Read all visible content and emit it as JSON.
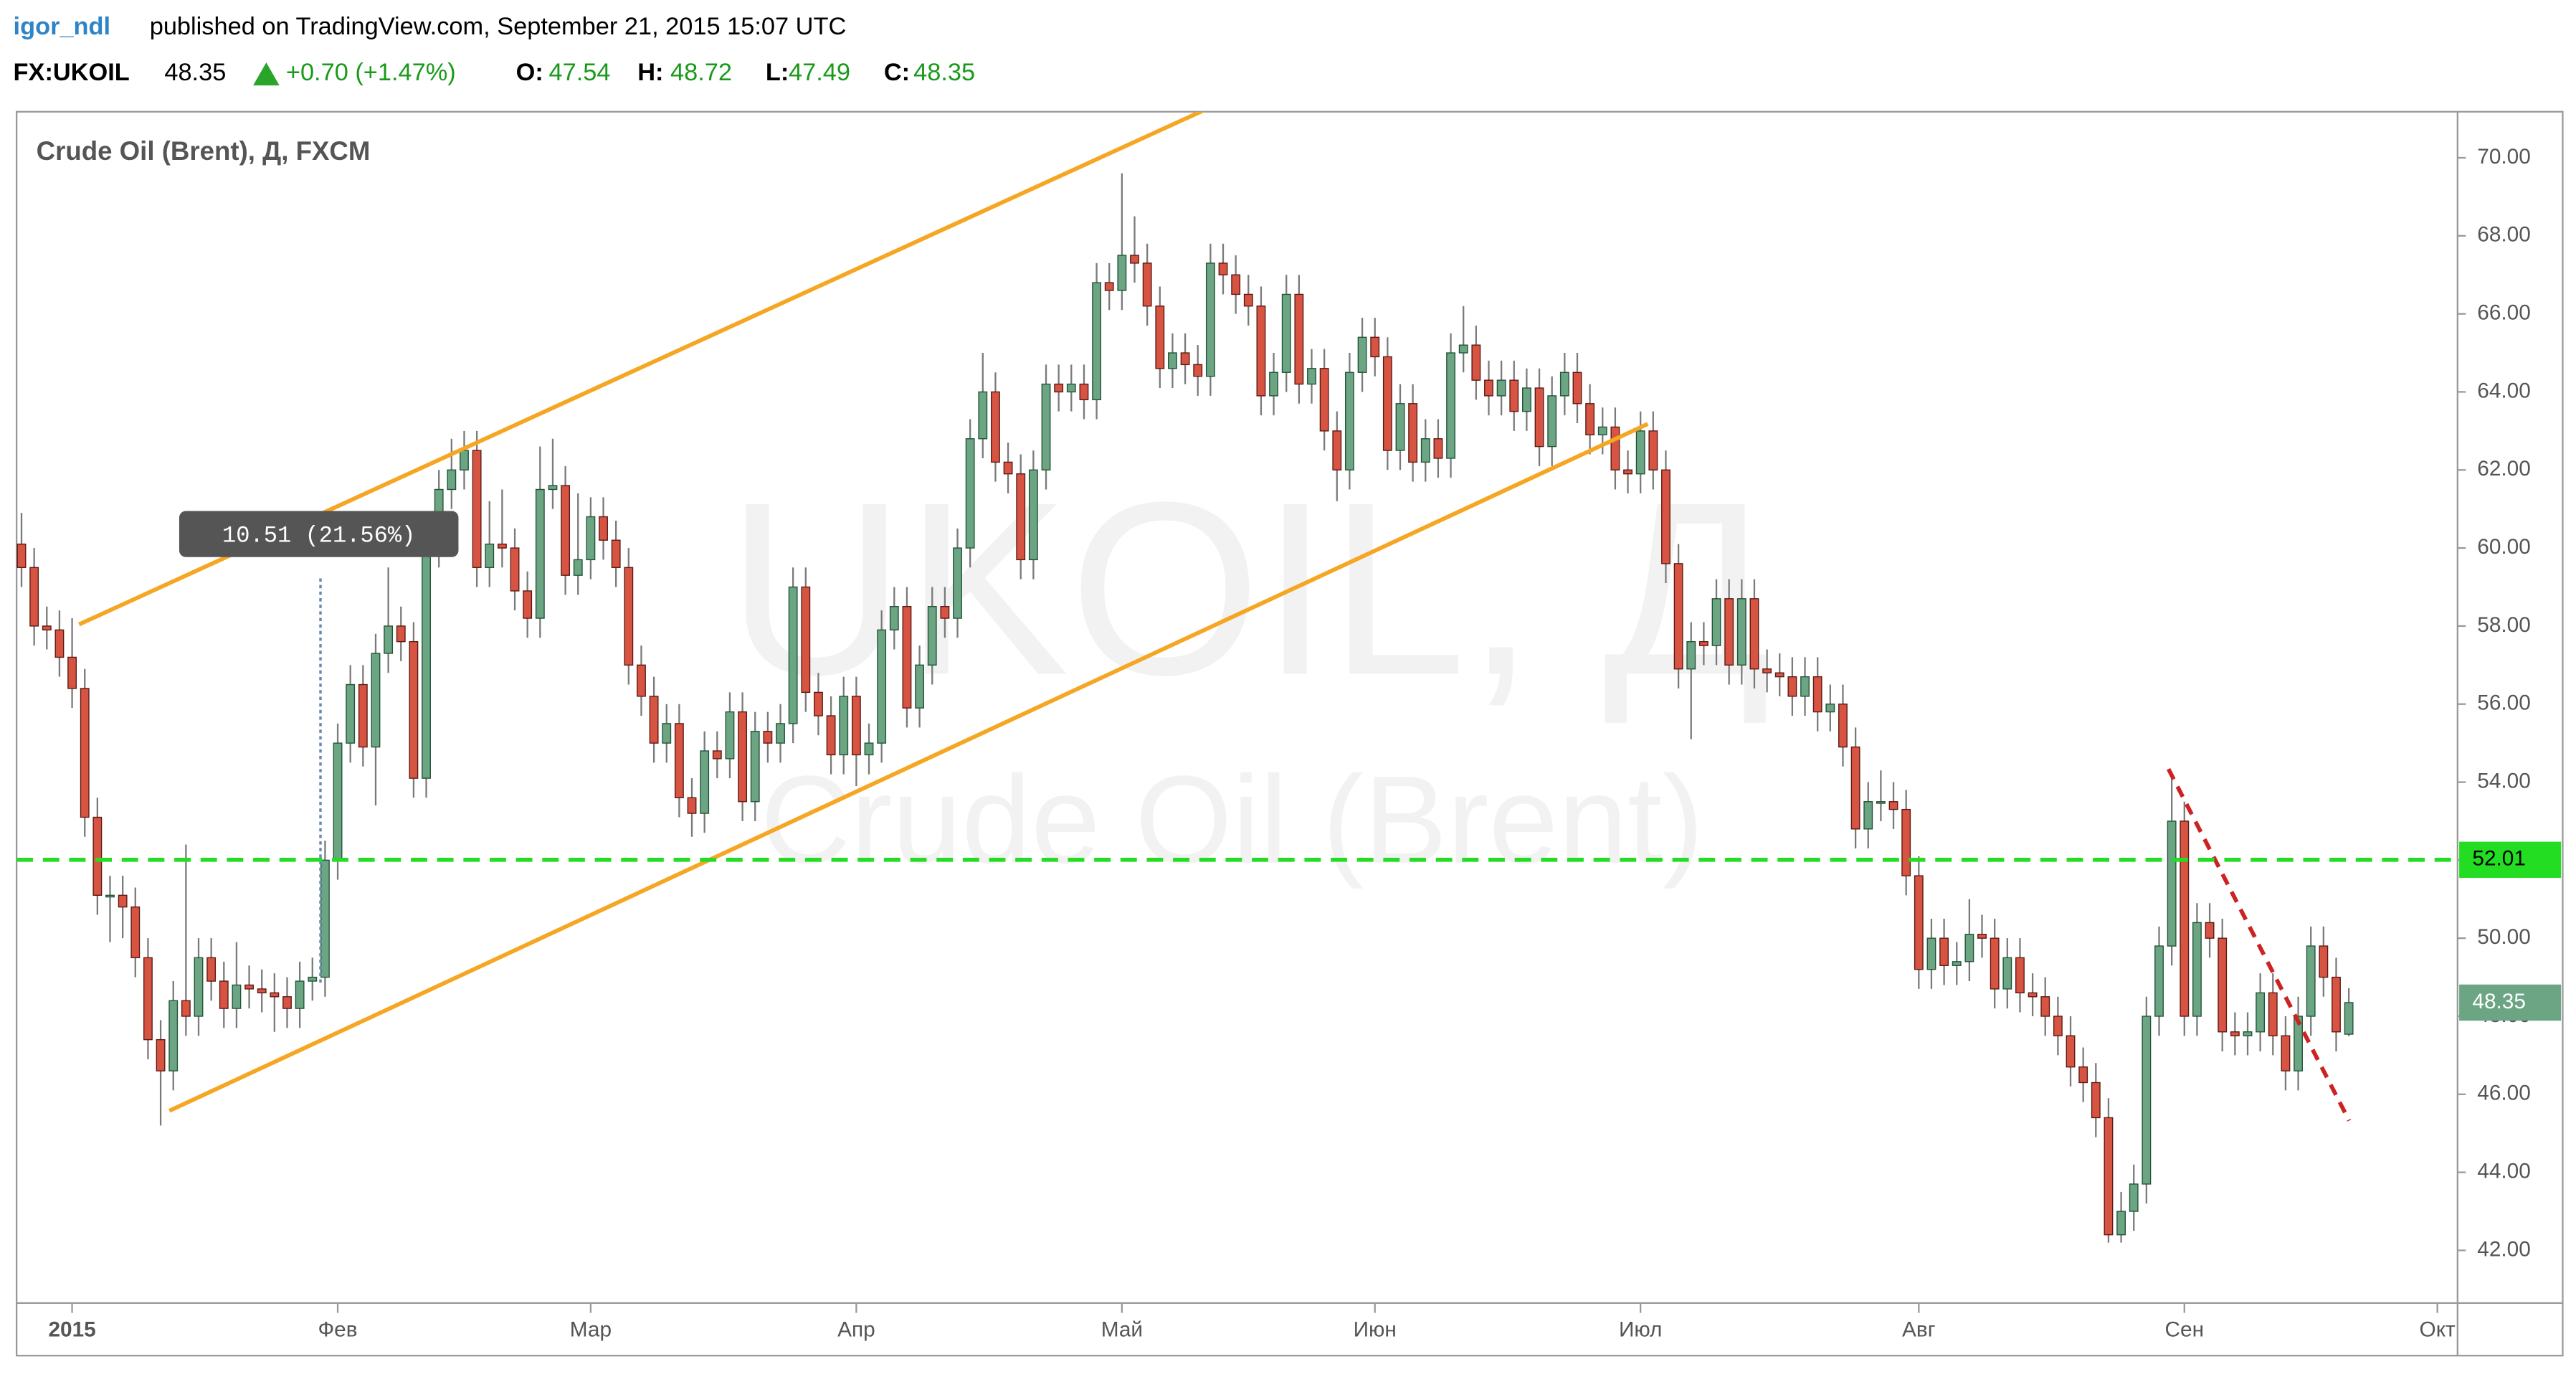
{
  "header": {
    "user": "igor_ndl",
    "published": "published on TradingView.com, September 21, 2015 15:07 UTC",
    "symbol": "FX:UKOIL",
    "last": 48.35,
    "change": "+0.70 (+1.47%)",
    "o_label": "O:",
    "o": 47.54,
    "h_label": "H:",
    "h": 48.72,
    "l_label": "L:",
    "l": 47.49,
    "c_label": "C:",
    "c": 48.35
  },
  "chart_data": {
    "type": "candlestick",
    "title": "Crude Oil (Brent), Д, FXCM",
    "watermark": [
      "UKOIL, Д",
      "Crude Oil (Brent)"
    ],
    "measure_label": "10.51 (21.56%)",
    "hline": {
      "value": 52.01,
      "label": "52.01",
      "color": "#22dd22"
    },
    "last_price": {
      "value": 48.35,
      "label": "48.35",
      "color": "#6ba583"
    },
    "up_color": "#6ba583",
    "up_border": "#225437",
    "down_color": "#d75442",
    "down_border": "#5b1a13",
    "wick_color": "#7a7a7a",
    "grid": false,
    "ylim": [
      40.65,
      71.18
    ],
    "yticks": [
      {
        "value": 42,
        "label": "42.00"
      },
      {
        "value": 44,
        "label": "44.00"
      },
      {
        "value": 46,
        "label": "46.00"
      },
      {
        "value": 48,
        "label": "48.00"
      },
      {
        "value": 50,
        "label": "50.00"
      },
      {
        "value": 52,
        "label": "52.00"
      },
      {
        "value": 54,
        "label": "54.00"
      },
      {
        "value": 56,
        "label": "56.00"
      },
      {
        "value": 58,
        "label": "58.00"
      },
      {
        "value": 60,
        "label": "60.00"
      },
      {
        "value": 62,
        "label": "62.00"
      },
      {
        "value": 64,
        "label": "64.00"
      },
      {
        "value": 66,
        "label": "66.00"
      },
      {
        "value": 68,
        "label": "68.00"
      },
      {
        "value": 70,
        "label": "70.00"
      }
    ],
    "categories": [
      null,
      null,
      null,
      null,
      "2015",
      null,
      null,
      null,
      null,
      null,
      null,
      null,
      null,
      null,
      null,
      null,
      null,
      null,
      null,
      null,
      null,
      null,
      null,
      null,
      null,
      "Фев",
      null,
      null,
      null,
      null,
      null,
      null,
      null,
      null,
      null,
      null,
      null,
      null,
      null,
      null,
      null,
      null,
      null,
      null,
      null,
      "Мар",
      null,
      null,
      null,
      null,
      null,
      null,
      null,
      null,
      null,
      null,
      null,
      null,
      null,
      null,
      null,
      null,
      null,
      null,
      null,
      null,
      "Апр",
      null,
      null,
      null,
      null,
      null,
      null,
      null,
      null,
      null,
      null,
      null,
      null,
      null,
      null,
      null,
      null,
      null,
      null,
      null,
      null,
      "Май",
      null,
      null,
      null,
      null,
      null,
      null,
      null,
      null,
      null,
      null,
      null,
      null,
      null,
      null,
      null,
      null,
      null,
      null,
      null,
      "Июн",
      null,
      null,
      null,
      null,
      null,
      null,
      null,
      null,
      null,
      null,
      null,
      null,
      null,
      null,
      null,
      null,
      null,
      null,
      null,
      null,
      "Июл",
      null,
      null,
      null,
      null,
      null,
      null,
      null,
      null,
      null,
      null,
      null,
      null,
      null,
      null,
      null,
      null,
      null,
      null,
      null,
      null,
      null,
      "Авг",
      null,
      null,
      null,
      null,
      null,
      null,
      null,
      null,
      null,
      null,
      null,
      null,
      null,
      null,
      null,
      null,
      null,
      null,
      null,
      null,
      "Сен",
      null,
      null,
      null,
      null,
      null,
      null,
      null,
      null,
      null,
      null,
      null,
      null,
      null,
      null,
      null,
      null,
      null,
      null,
      null,
      "Окт"
    ],
    "open": [
      60.1,
      59.5,
      58.0,
      57.9,
      57.2,
      56.4,
      53.1,
      51.1,
      51.1,
      50.8,
      49.5,
      47.4,
      46.6,
      48.4,
      48.0,
      49.5,
      48.9,
      48.2,
      48.8,
      48.7,
      48.6,
      48.5,
      48.2,
      48.9,
      49.0,
      52.0,
      55.0,
      56.5,
      54.9,
      57.3,
      58.0,
      57.6,
      54.1,
      60.0,
      61.5,
      62.0,
      62.5,
      59.5,
      60.1,
      60.0,
      58.9,
      58.2,
      61.5,
      61.6,
      59.3,
      59.7,
      60.8,
      60.2,
      59.5,
      57.0,
      56.2,
      55.0,
      55.5,
      53.6,
      53.2,
      54.8,
      54.6,
      55.8,
      53.5,
      55.3,
      55.0,
      55.5,
      59.0,
      56.3,
      55.7,
      54.7,
      56.2,
      54.7,
      55.0,
      57.9,
      58.5,
      55.9,
      57.0,
      58.5,
      58.2,
      60.0,
      62.8,
      64.0,
      62.2,
      61.9,
      59.7,
      62.0,
      64.2,
      64.0,
      64.2,
      63.8,
      66.8,
      66.6,
      67.5,
      67.3,
      66.2,
      64.6,
      65.0,
      64.7,
      64.4,
      67.3,
      67.0,
      66.5,
      66.2,
      63.9,
      64.5,
      66.5,
      64.2,
      64.6,
      63.0,
      62.0,
      64.5,
      65.4,
      64.9,
      62.5,
      63.7,
      62.2,
      62.8,
      62.3,
      65.0,
      65.2,
      64.3,
      63.9,
      64.3,
      63.5,
      64.1,
      62.6,
      63.9,
      64.5,
      63.7,
      62.9,
      63.1,
      62.0,
      61.9,
      63.0,
      62.0,
      59.6,
      56.9,
      57.6,
      57.5,
      58.7,
      57.0,
      58.7,
      56.9,
      56.8,
      56.7,
      56.2,
      56.7,
      55.8,
      56.0,
      54.9,
      52.8,
      53.5,
      53.5,
      53.3,
      51.6,
      49.2,
      50.0,
      49.3,
      49.4,
      50.1,
      50.0,
      48.7,
      49.5,
      48.6,
      48.5,
      48.0,
      47.5,
      46.7,
      46.3,
      45.4,
      42.4,
      43.0,
      43.7,
      48.0,
      49.8,
      53.0,
      48.0,
      50.4,
      50.0,
      47.6,
      47.5,
      47.6,
      48.6,
      47.5,
      46.6,
      48.0,
      49.8,
      49.0,
      47.54,
      null,
      null,
      null,
      null,
      null,
      null,
      null
    ],
    "high": [
      60.9,
      60.0,
      58.5,
      58.4,
      58.2,
      56.9,
      53.6,
      51.6,
      51.6,
      51.3,
      50.0,
      47.9,
      48.9,
      52.4,
      50.0,
      50.0,
      49.4,
      49.9,
      49.3,
      49.2,
      49.1,
      49.0,
      49.4,
      49.5,
      52.5,
      55.5,
      57.0,
      57.0,
      57.8,
      59.5,
      58.5,
      58.1,
      60.5,
      62.0,
      62.8,
      63.0,
      63.0,
      61.2,
      61.5,
      60.5,
      59.4,
      62.6,
      62.8,
      62.1,
      61.4,
      61.3,
      61.3,
      60.7,
      60.0,
      57.5,
      56.7,
      56.0,
      56.0,
      54.1,
      55.3,
      55.3,
      56.3,
      56.3,
      55.8,
      55.8,
      56.0,
      59.5,
      59.5,
      56.8,
      56.2,
      56.7,
      56.7,
      55.5,
      58.4,
      59.0,
      59.0,
      57.5,
      59.0,
      59.0,
      60.5,
      63.3,
      65.0,
      64.5,
      62.7,
      62.4,
      62.5,
      64.7,
      64.7,
      64.7,
      64.7,
      67.3,
      67.3,
      69.6,
      68.5,
      67.8,
      66.7,
      65.5,
      65.5,
      65.2,
      67.8,
      67.8,
      67.5,
      67.0,
      66.7,
      65.0,
      67.0,
      67.0,
      65.1,
      65.1,
      63.5,
      65.0,
      65.9,
      65.9,
      65.4,
      64.2,
      64.2,
      63.3,
      63.3,
      65.5,
      66.2,
      65.7,
      64.8,
      64.8,
      64.8,
      64.6,
      64.6,
      64.4,
      65.0,
      65.0,
      64.2,
      63.6,
      63.6,
      62.5,
      63.5,
      63.5,
      62.5,
      60.1,
      58.1,
      58.1,
      59.2,
      59.2,
      59.2,
      59.2,
      57.4,
      57.3,
      57.2,
      57.2,
      57.2,
      56.5,
      56.5,
      55.4,
      54.0,
      54.3,
      54.0,
      53.8,
      52.1,
      50.5,
      50.5,
      49.9,
      51.0,
      50.6,
      50.5,
      50.0,
      50.0,
      49.1,
      49.0,
      48.5,
      48.0,
      47.2,
      46.8,
      45.9,
      43.5,
      44.2,
      48.5,
      50.3,
      54.2,
      53.5,
      50.9,
      50.9,
      50.5,
      48.1,
      48.1,
      49.1,
      49.1,
      48.0,
      48.5,
      50.3,
      50.3,
      49.5,
      48.72,
      null,
      null,
      null,
      null,
      null,
      null,
      null
    ],
    "low": [
      59.0,
      57.5,
      57.4,
      56.7,
      55.9,
      52.6,
      50.6,
      49.9,
      50.0,
      49.0,
      46.9,
      45.2,
      46.1,
      47.5,
      47.5,
      48.4,
      47.7,
      47.7,
      48.2,
      48.1,
      47.6,
      47.7,
      47.7,
      48.4,
      48.5,
      51.5,
      54.5,
      54.4,
      53.4,
      56.8,
      57.1,
      53.6,
      53.6,
      59.5,
      61.0,
      61.5,
      59.0,
      59.0,
      59.5,
      58.4,
      57.7,
      57.7,
      61.0,
      58.8,
      58.8,
      59.2,
      59.7,
      59.0,
      56.5,
      55.7,
      54.5,
      54.5,
      53.1,
      52.6,
      52.7,
      54.1,
      54.1,
      53.0,
      53.0,
      54.5,
      54.5,
      55.0,
      55.8,
      55.2,
      54.2,
      54.2,
      53.9,
      54.2,
      54.5,
      57.4,
      55.4,
      55.4,
      56.5,
      57.7,
      57.7,
      59.5,
      62.3,
      61.7,
      61.4,
      59.2,
      59.2,
      61.5,
      63.5,
      63.5,
      63.3,
      63.3,
      66.1,
      66.1,
      66.8,
      65.7,
      64.1,
      64.1,
      64.2,
      63.9,
      63.9,
      66.5,
      66.0,
      65.7,
      63.4,
      63.4,
      64.0,
      63.7,
      63.7,
      62.5,
      61.2,
      61.5,
      64.0,
      64.4,
      62.0,
      62.0,
      61.7,
      61.7,
      61.8,
      61.8,
      64.5,
      63.8,
      63.4,
      63.4,
      63.0,
      63.0,
      62.1,
      62.1,
      63.4,
      63.2,
      62.4,
      62.4,
      61.5,
      61.4,
      61.4,
      61.5,
      59.1,
      56.4,
      55.1,
      57.0,
      57.0,
      56.5,
      56.5,
      56.4,
      56.3,
      56.2,
      55.7,
      55.7,
      55.3,
      55.3,
      54.4,
      52.3,
      52.3,
      53.0,
      52.8,
      51.1,
      48.7,
      48.7,
      48.8,
      48.8,
      48.9,
      49.5,
      48.2,
      48.2,
      48.1,
      48.0,
      47.5,
      47.0,
      46.2,
      45.8,
      44.9,
      42.2,
      42.2,
      42.5,
      43.2,
      47.5,
      49.3,
      47.5,
      47.5,
      49.5,
      47.1,
      47.0,
      47.0,
      47.1,
      47.0,
      46.1,
      46.1,
      47.5,
      48.5,
      47.1,
      47.49,
      null,
      null,
      null,
      null,
      null,
      null,
      null
    ],
    "close": [
      59.5,
      58.0,
      57.9,
      57.2,
      56.4,
      53.1,
      51.1,
      51.1,
      50.8,
      49.5,
      47.4,
      46.6,
      48.4,
      48.0,
      49.5,
      48.9,
      48.2,
      48.8,
      48.7,
      48.6,
      48.5,
      48.2,
      48.9,
      49.0,
      52.0,
      55.0,
      56.5,
      54.9,
      57.3,
      58.0,
      57.6,
      54.1,
      60.0,
      61.5,
      62.0,
      62.5,
      59.5,
      60.1,
      60.0,
      58.9,
      58.2,
      61.5,
      61.6,
      59.3,
      59.7,
      60.8,
      60.2,
      59.5,
      57.0,
      56.2,
      55.0,
      55.5,
      53.6,
      53.2,
      54.8,
      54.6,
      55.8,
      53.5,
      55.3,
      55.0,
      55.5,
      59.0,
      56.3,
      55.7,
      54.7,
      56.2,
      54.7,
      55.0,
      57.9,
      58.5,
      55.9,
      57.0,
      58.5,
      58.2,
      60.0,
      62.8,
      64.0,
      62.2,
      61.9,
      59.7,
      62.0,
      64.2,
      64.0,
      64.2,
      63.8,
      66.8,
      66.6,
      67.5,
      67.3,
      66.2,
      64.6,
      65.0,
      64.7,
      64.4,
      67.3,
      67.0,
      66.5,
      66.2,
      63.9,
      64.5,
      66.5,
      64.2,
      64.6,
      63.0,
      62.0,
      64.5,
      65.4,
      64.9,
      62.5,
      63.7,
      62.2,
      62.8,
      62.3,
      65.0,
      65.2,
      64.3,
      63.9,
      64.3,
      63.5,
      64.1,
      62.6,
      63.9,
      64.5,
      63.7,
      62.9,
      63.1,
      62.0,
      61.9,
      63.0,
      62.0,
      59.6,
      56.9,
      57.6,
      57.5,
      58.7,
      57.0,
      58.7,
      56.9,
      56.8,
      56.7,
      56.2,
      56.7,
      55.8,
      56.0,
      54.9,
      52.8,
      53.5,
      53.5,
      53.3,
      51.6,
      49.2,
      50.0,
      49.3,
      49.4,
      50.1,
      50.0,
      48.7,
      49.5,
      48.6,
      48.5,
      48.0,
      47.5,
      46.7,
      46.3,
      45.4,
      42.4,
      43.0,
      43.7,
      48.0,
      49.8,
      53.0,
      48.0,
      50.4,
      50.0,
      47.6,
      47.5,
      47.6,
      48.6,
      47.5,
      46.6,
      48.0,
      49.8,
      49.0,
      47.6,
      48.35,
      null,
      null,
      null,
      null,
      null,
      null,
      null
    ]
  }
}
